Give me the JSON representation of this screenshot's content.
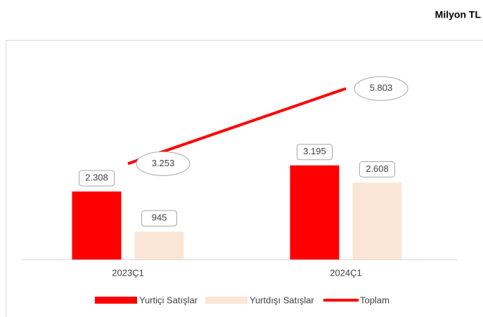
{
  "chart_data": {
    "type": "bar",
    "title": "Milyon TL",
    "categories": [
      "2023Ç1",
      "2024Ç1"
    ],
    "ylim": [
      0,
      7000
    ],
    "legend": "bottom",
    "series": [
      {
        "name": "Yurtiçi Satışlar",
        "type": "bar",
        "color": "#ff0000",
        "values": [
          2308,
          3195
        ],
        "value_labels": [
          "2.308",
          "3.195"
        ]
      },
      {
        "name": "Yurtdışı Satışlar",
        "type": "bar",
        "color": "#fbe5d6",
        "values": [
          945,
          2608
        ],
        "value_labels": [
          "945",
          "2.608"
        ]
      },
      {
        "name": "Toplam",
        "type": "line",
        "color": "#ff0000",
        "values": [
          3253,
          5803
        ],
        "value_labels": [
          "3.253",
          "5.803"
        ]
      }
    ]
  }
}
